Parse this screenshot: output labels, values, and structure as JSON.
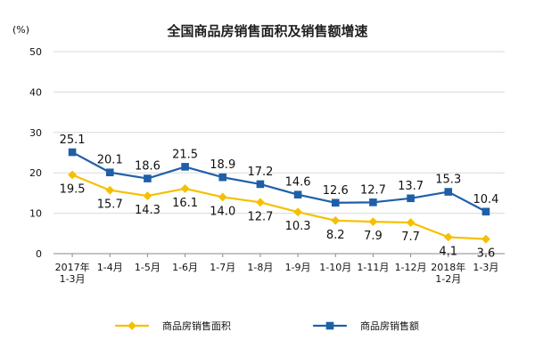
{
  "chart_data": {
    "type": "line",
    "title": "全国商品房销售面积及销售额增速",
    "unit_label": "(%)",
    "categories": [
      [
        "2017年",
        "1-3月"
      ],
      [
        "1-4月"
      ],
      [
        "1-5月"
      ],
      [
        "1-6月"
      ],
      [
        "1-7月"
      ],
      [
        "1-8月"
      ],
      [
        "1-9月"
      ],
      [
        "1-10月"
      ],
      [
        "1-11月"
      ],
      [
        "1-12月"
      ],
      [
        "2018年",
        "1-2月"
      ],
      [
        "1-3月"
      ]
    ],
    "yticks": [
      0,
      10,
      20,
      30,
      40,
      50
    ],
    "ylim": [
      0,
      50
    ],
    "grid": true,
    "legend": "bottom",
    "series": [
      {
        "name": "商品房销售面积",
        "color": "#f5c000",
        "marker": "diamond",
        "values": [
          19.5,
          15.7,
          14.3,
          16.1,
          14.0,
          12.7,
          10.3,
          8.2,
          7.9,
          7.7,
          4.1,
          3.6
        ],
        "labels": [
          "19.5",
          "15.7",
          "14.3",
          "16.1",
          "14.0",
          "12.7",
          "10.3",
          "8.2",
          "7.9",
          "7.7",
          "4.1",
          "3.6"
        ],
        "label_position": "below"
      },
      {
        "name": "商品房销售额",
        "color": "#1f5fa8",
        "marker": "square",
        "values": [
          25.1,
          20.1,
          18.6,
          21.5,
          18.9,
          17.2,
          14.6,
          12.6,
          12.7,
          13.7,
          15.3,
          10.4
        ],
        "labels": [
          "25.1",
          "20.1",
          "18.6",
          "21.5",
          "18.9",
          "17.2",
          "14.6",
          "12.6",
          "12.7",
          "13.7",
          "15.3",
          "10.4"
        ],
        "label_position": "above"
      }
    ]
  }
}
